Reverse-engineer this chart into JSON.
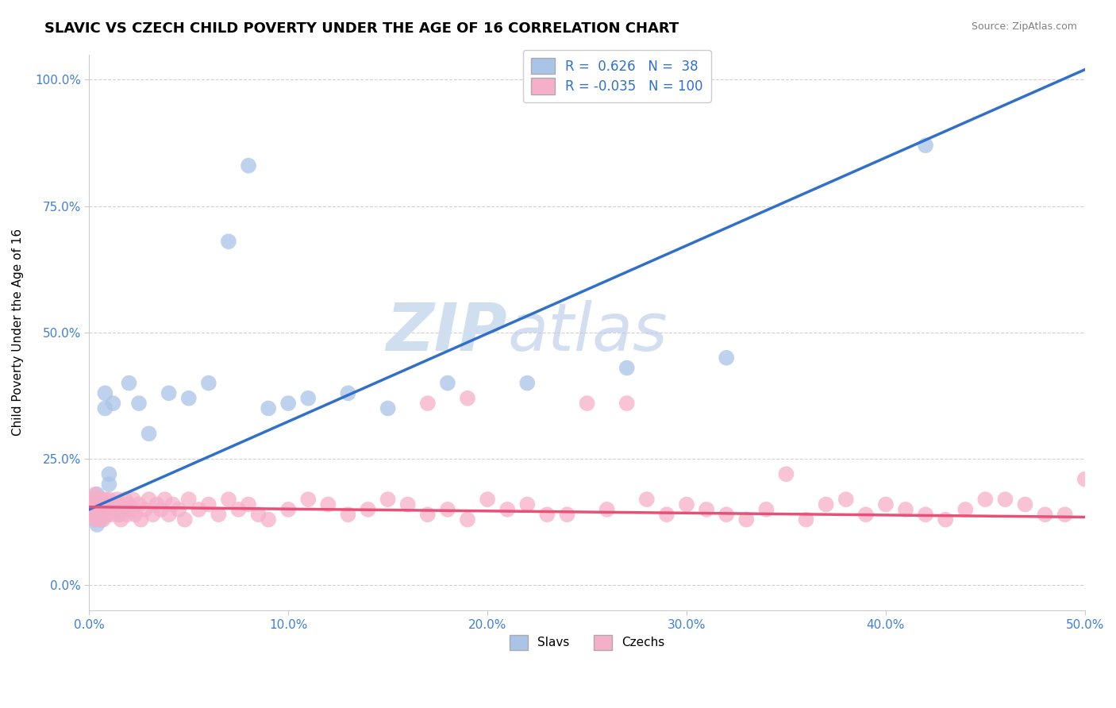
{
  "title": "SLAVIC VS CZECH CHILD POVERTY UNDER THE AGE OF 16 CORRELATION CHART",
  "source": "Source: ZipAtlas.com",
  "ylabel": "Child Poverty Under the Age of 16",
  "xlim": [
    0.0,
    0.5
  ],
  "ylim": [
    -0.05,
    1.05
  ],
  "xticks": [
    0.0,
    0.1,
    0.2,
    0.3,
    0.4,
    0.5
  ],
  "xticklabels": [
    "0.0%",
    "10.0%",
    "20.0%",
    "30.0%",
    "40.0%",
    "50.0%"
  ],
  "yticks": [
    0.0,
    0.25,
    0.5,
    0.75,
    1.0
  ],
  "yticklabels": [
    "0.0%",
    "25.0%",
    "50.0%",
    "75.0%",
    "100.0%"
  ],
  "slavs_R": 0.626,
  "slavs_N": 38,
  "czechs_R": -0.035,
  "czechs_N": 100,
  "slavs_color": "#aac4e8",
  "czechs_color": "#f5afc8",
  "slavs_line_color": "#3070c8",
  "czechs_line_color": "#e8507a",
  "tick_color": "#4080d0",
  "background_color": "#ffffff",
  "grid_color": "#cccccc",
  "watermark_color": "#d0dff0",
  "slavs_line_x0": 0.0,
  "slavs_line_y0": 0.15,
  "slavs_line_x1": 0.5,
  "slavs_line_y1": 1.02,
  "czechs_line_x0": 0.0,
  "czechs_line_y0": 0.155,
  "czechs_line_x1": 0.5,
  "czechs_line_y1": 0.135,
  "slavs_x": [
    0.001,
    0.002,
    0.002,
    0.003,
    0.003,
    0.004,
    0.004,
    0.005,
    0.005,
    0.006,
    0.006,
    0.007,
    0.007,
    0.008,
    0.008,
    0.009,
    0.01,
    0.01,
    0.012,
    0.015,
    0.02,
    0.025,
    0.03,
    0.04,
    0.05,
    0.06,
    0.07,
    0.08,
    0.09,
    0.1,
    0.11,
    0.13,
    0.15,
    0.18,
    0.22,
    0.27,
    0.32,
    0.42
  ],
  "slavs_y": [
    0.15,
    0.14,
    0.16,
    0.13,
    0.17,
    0.12,
    0.18,
    0.14,
    0.16,
    0.13,
    0.17,
    0.15,
    0.16,
    0.35,
    0.38,
    0.14,
    0.2,
    0.22,
    0.36,
    0.14,
    0.4,
    0.36,
    0.3,
    0.38,
    0.37,
    0.4,
    0.68,
    0.83,
    0.35,
    0.36,
    0.37,
    0.38,
    0.35,
    0.4,
    0.4,
    0.43,
    0.45,
    0.87
  ],
  "czechs_x": [
    0.001,
    0.001,
    0.002,
    0.002,
    0.003,
    0.003,
    0.003,
    0.004,
    0.004,
    0.005,
    0.005,
    0.005,
    0.006,
    0.006,
    0.007,
    0.007,
    0.008,
    0.008,
    0.009,
    0.009,
    0.01,
    0.01,
    0.011,
    0.012,
    0.013,
    0.014,
    0.015,
    0.015,
    0.016,
    0.017,
    0.018,
    0.019,
    0.02,
    0.021,
    0.022,
    0.023,
    0.025,
    0.026,
    0.028,
    0.03,
    0.032,
    0.034,
    0.036,
    0.038,
    0.04,
    0.042,
    0.045,
    0.048,
    0.05,
    0.055,
    0.06,
    0.065,
    0.07,
    0.075,
    0.08,
    0.085,
    0.09,
    0.1,
    0.11,
    0.12,
    0.13,
    0.14,
    0.15,
    0.16,
    0.17,
    0.18,
    0.19,
    0.2,
    0.22,
    0.24,
    0.26,
    0.28,
    0.3,
    0.32,
    0.34,
    0.36,
    0.38,
    0.4,
    0.42,
    0.44,
    0.46,
    0.48,
    0.5,
    0.27,
    0.29,
    0.31,
    0.33,
    0.35,
    0.37,
    0.39,
    0.41,
    0.43,
    0.45,
    0.47,
    0.49,
    0.25,
    0.23,
    0.21,
    0.19,
    0.17
  ],
  "czechs_y": [
    0.15,
    0.16,
    0.14,
    0.17,
    0.13,
    0.16,
    0.18,
    0.14,
    0.15,
    0.13,
    0.16,
    0.17,
    0.15,
    0.14,
    0.16,
    0.13,
    0.15,
    0.17,
    0.14,
    0.16,
    0.15,
    0.17,
    0.14,
    0.16,
    0.15,
    0.17,
    0.14,
    0.16,
    0.13,
    0.15,
    0.17,
    0.14,
    0.16,
    0.15,
    0.17,
    0.14,
    0.16,
    0.13,
    0.15,
    0.17,
    0.14,
    0.16,
    0.15,
    0.17,
    0.14,
    0.16,
    0.15,
    0.13,
    0.17,
    0.15,
    0.16,
    0.14,
    0.17,
    0.15,
    0.16,
    0.14,
    0.13,
    0.15,
    0.17,
    0.16,
    0.14,
    0.15,
    0.17,
    0.16,
    0.14,
    0.15,
    0.13,
    0.17,
    0.16,
    0.14,
    0.15,
    0.17,
    0.16,
    0.14,
    0.15,
    0.13,
    0.17,
    0.16,
    0.14,
    0.15,
    0.17,
    0.14,
    0.21,
    0.36,
    0.14,
    0.15,
    0.13,
    0.22,
    0.16,
    0.14,
    0.15,
    0.13,
    0.17,
    0.16,
    0.14,
    0.36,
    0.14,
    0.15,
    0.37,
    0.36
  ]
}
